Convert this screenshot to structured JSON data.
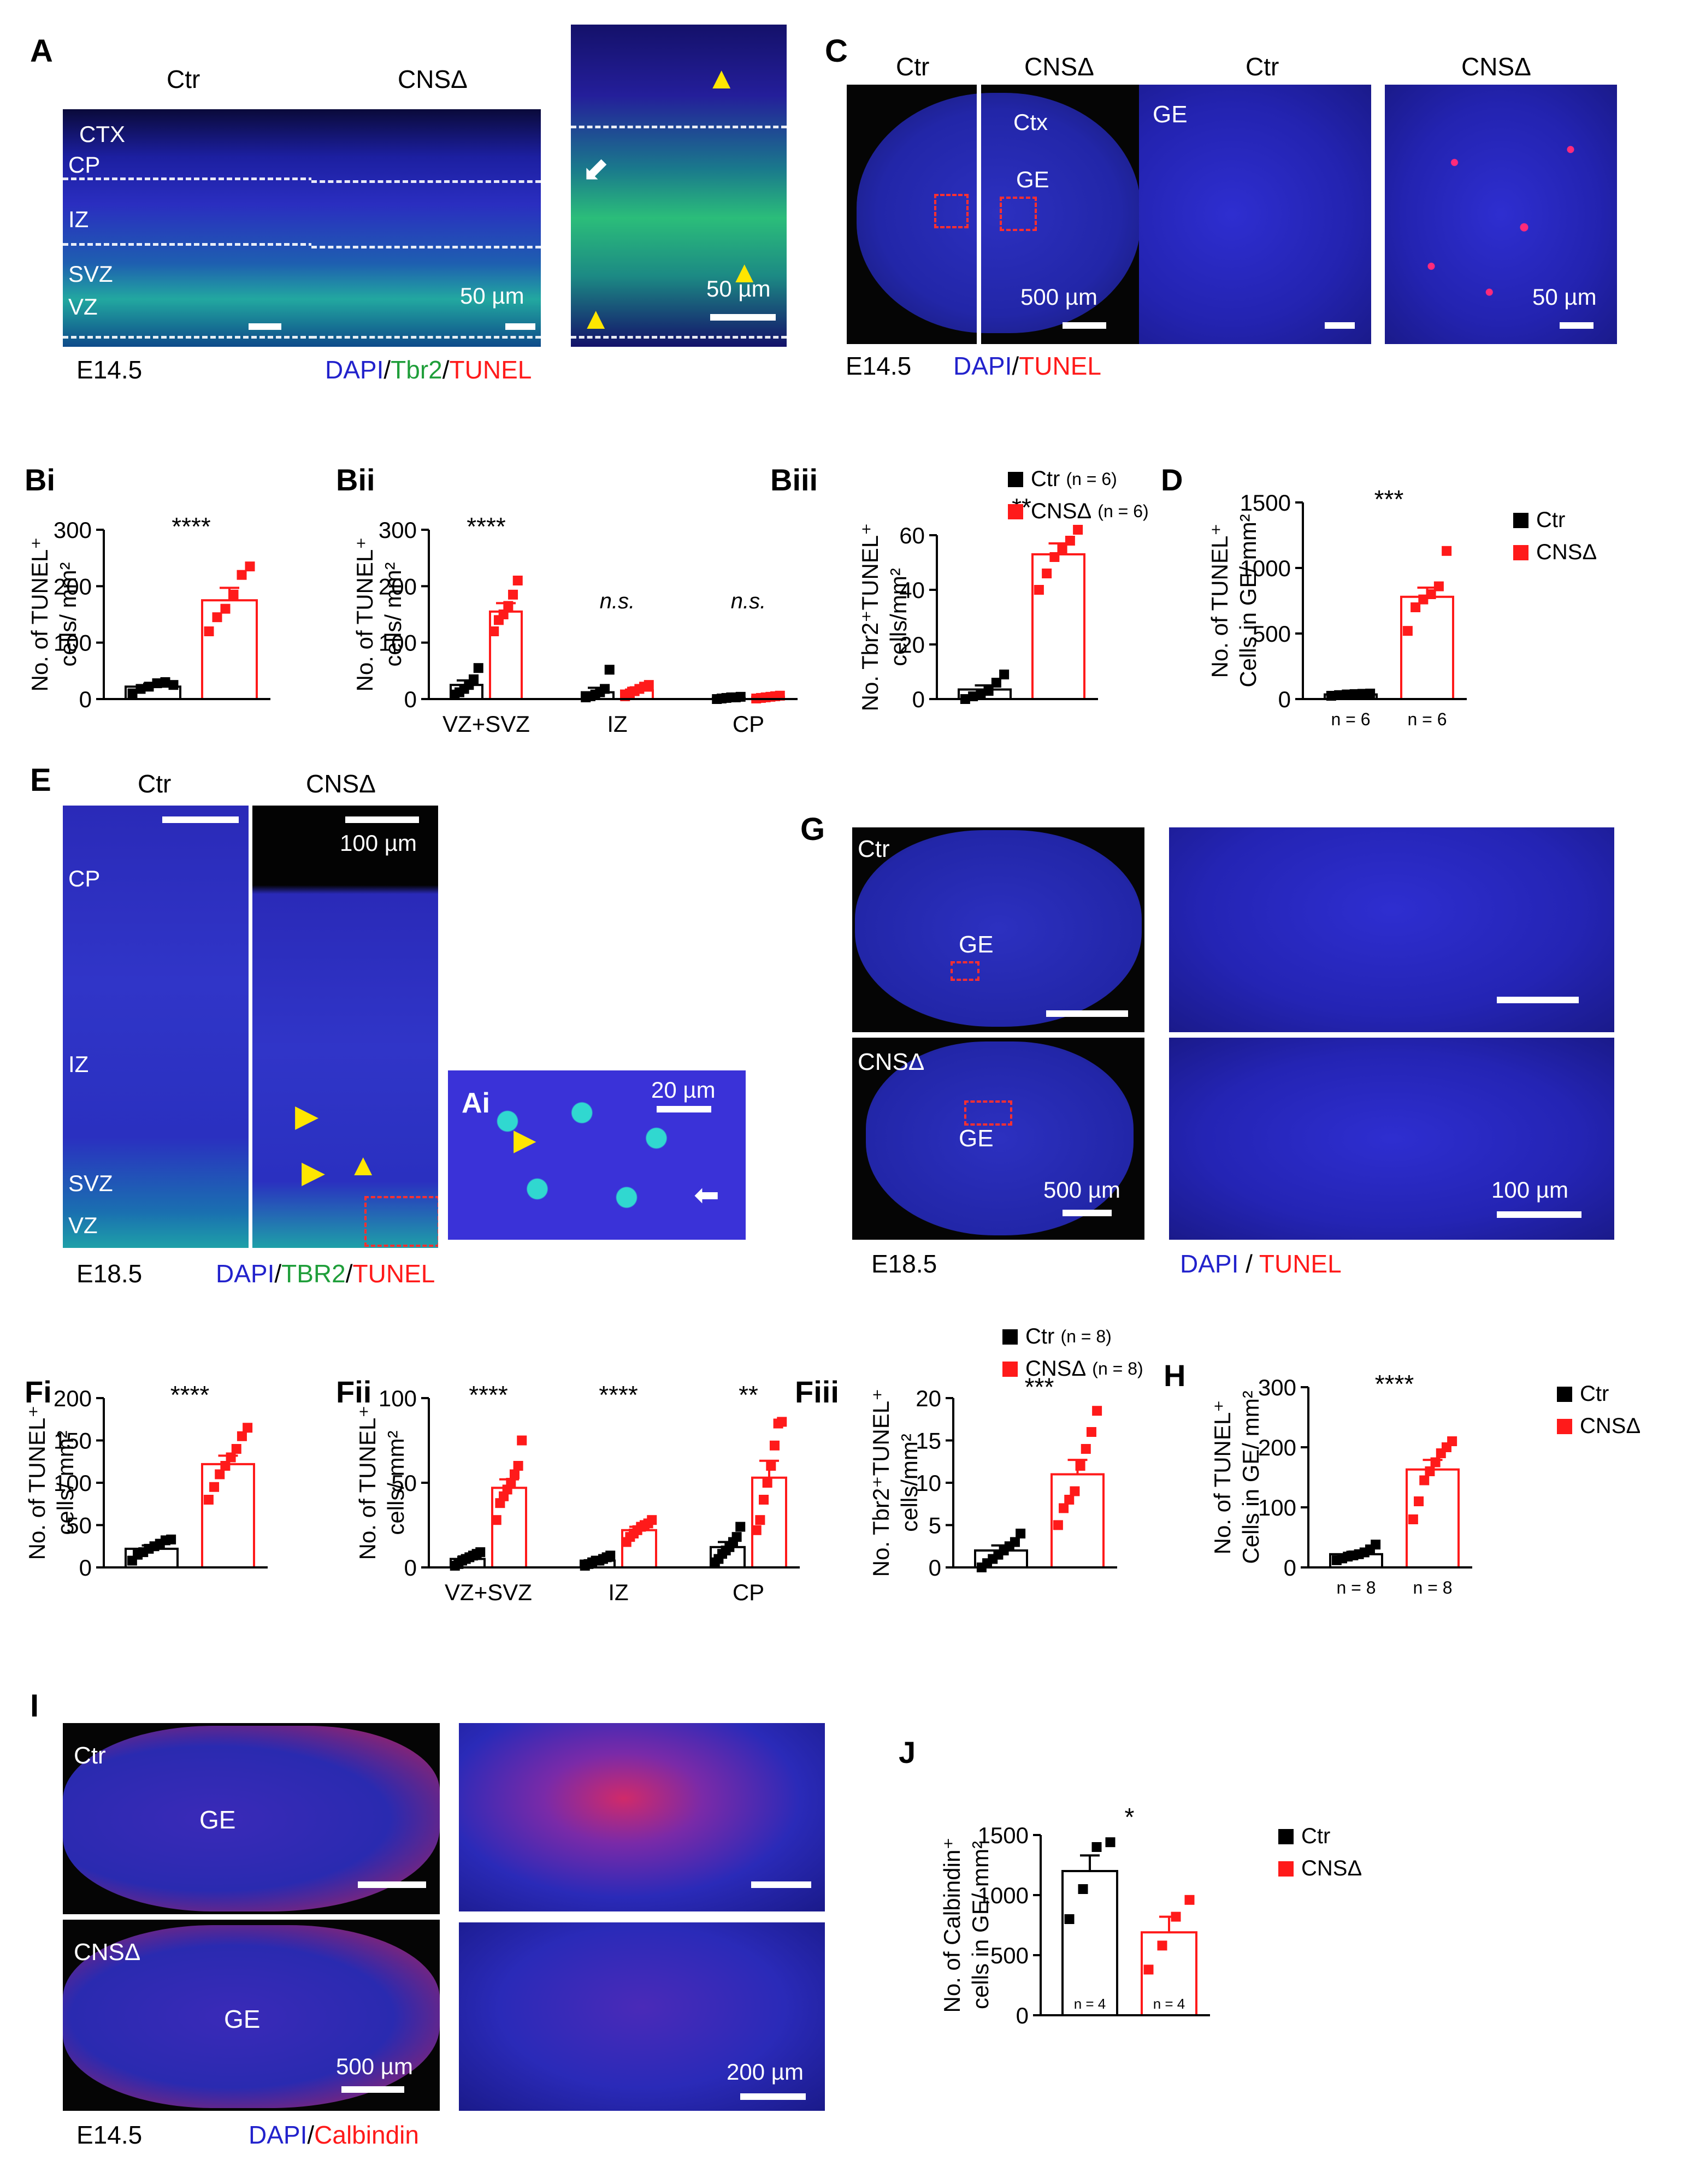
{
  "panels": {
    "A": {
      "label": "A",
      "ctr": "Ctr",
      "cnsd": "CNSΔ",
      "ctx": "CTX",
      "cp": "CP",
      "iz": "IZ",
      "svz": "SVZ",
      "vz": "VZ",
      "scale1": "50 µm",
      "scale2": "50 µm",
      "age": "E14.5",
      "stain": [
        "DAPI",
        "/",
        "Tbr2",
        "/",
        "TUNEL"
      ]
    },
    "C": {
      "label": "C",
      "ctr": "Ctr",
      "cnsd": "CNSΔ",
      "ctr2": "Ctr",
      "cnsd2": "CNSΔ",
      "ctx": "Ctx",
      "ge": "GE",
      "ge2": "GE",
      "scale1": "500 µm",
      "scale2": "50 µm",
      "age": "E14.5",
      "stain": [
        "DAPI",
        "/",
        "TUNEL"
      ]
    },
    "E": {
      "label": "E",
      "ctr": "Ctr",
      "cnsd": "CNSΔ",
      "scale": "100 µm",
      "cp": "CP",
      "iz": "IZ",
      "svz": "SVZ",
      "vz": "VZ",
      "ai": "Ai",
      "scale_ai": "20 µm",
      "age": "E18.5",
      "stain": [
        "DAPI",
        "/",
        "TBR2",
        "/",
        "TUNEL"
      ]
    },
    "G": {
      "label": "G",
      "ctr": "Ctr",
      "cnsd": "CNSΔ",
      "ge1": "GE",
      "ge2": "GE",
      "scale1": "500 µm",
      "scale2": "100 µm",
      "age": "E18.5",
      "stain": [
        "DAPI",
        " / ",
        "TUNEL"
      ]
    },
    "I": {
      "label": "I",
      "ctr": "Ctr",
      "cnsd": "CNSΔ",
      "ge1": "GE",
      "ge2": "GE",
      "scale1": "500 µm",
      "scale2": "200 µm",
      "age": "E14.5",
      "stain": [
        "DAPI",
        "/",
        "Calbindin"
      ]
    }
  },
  "colors": {
    "ctr": "#000000",
    "cnsd": "#ff1a1a",
    "dapi": "#2222cc",
    "green": "#1f9e3a",
    "red": "#ff1a1a"
  },
  "legends": {
    "biii": [
      {
        "label": "Ctr",
        "n": "(n = 6)",
        "color": "#000000"
      },
      {
        "label": "CNSΔ",
        "n": "(n = 6)",
        "color": "#ff1a1a"
      }
    ],
    "d": [
      {
        "label": "Ctr",
        "n": "",
        "color": "#000000"
      },
      {
        "label": "CNSΔ",
        "n": "",
        "color": "#ff1a1a"
      }
    ],
    "fiii": [
      {
        "label": "Ctr",
        "n": "(n = 8)",
        "color": "#000000"
      },
      {
        "label": "CNSΔ",
        "n": "(n = 8)",
        "color": "#ff1a1a"
      }
    ],
    "h": [
      {
        "label": "Ctr",
        "n": "",
        "color": "#000000"
      },
      {
        "label": "CNSΔ",
        "n": "",
        "color": "#ff1a1a"
      }
    ],
    "j": [
      {
        "label": "Ctr",
        "n": "",
        "color": "#000000"
      },
      {
        "label": "CNSΔ",
        "n": "",
        "color": "#ff1a1a"
      }
    ]
  },
  "chart_data": [
    {
      "id": "Bi",
      "label": "Bi",
      "type": "bar",
      "ylabel": [
        "No. of TUNEL⁺",
        "cells/ mm²"
      ],
      "ylim": [
        0,
        300
      ],
      "yticks": [
        0,
        100,
        200,
        300
      ],
      "categories": [
        "Ctr",
        "CNSΔ"
      ],
      "values": [
        22,
        175
      ],
      "errors": [
        5,
        22
      ],
      "points": [
        [
          10,
          18,
          22,
          28,
          30,
          25
        ],
        [
          120,
          145,
          160,
          185,
          220,
          235
        ]
      ],
      "sig": "****",
      "xlabels": [],
      "nlabels": []
    },
    {
      "id": "Bii",
      "label": "Bii",
      "type": "bar",
      "ylabel": [
        "No. of TUNEL⁺",
        "cells/ mm²"
      ],
      "ylim": [
        0,
        300
      ],
      "yticks": [
        0,
        100,
        200,
        300
      ],
      "categories": [
        "VZ+SVZ",
        "IZ",
        "CP"
      ],
      "series": [
        {
          "name": "Ctr",
          "values": [
            25,
            12,
            2
          ],
          "errors": [
            8,
            8,
            1
          ],
          "points": [
            [
              8,
              12,
              18,
              25,
              35,
              55
            ],
            [
              3,
              5,
              8,
              12,
              18,
              52
            ],
            [
              0,
              1,
              2,
              3,
              3,
              4
            ]
          ]
        },
        {
          "name": "CNSΔ",
          "values": [
            155,
            15,
            4
          ],
          "errors": [
            15,
            5,
            2
          ],
          "points": [
            [
              120,
              140,
              150,
              165,
              185,
              210
            ],
            [
              5,
              10,
              14,
              18,
              22,
              25
            ],
            [
              1,
              2,
              3,
              4,
              5,
              6
            ]
          ]
        }
      ],
      "sig": [
        "****",
        "n.s.",
        "n.s."
      ],
      "xlabels": [
        "VZ+SVZ",
        "IZ",
        "CP"
      ],
      "nlabels": []
    },
    {
      "id": "Biii",
      "label": "Biii",
      "type": "bar",
      "ylabel": [
        "No. Tbr2⁺TUNEL⁺",
        "cells/mm²"
      ],
      "ylim": [
        0,
        60
      ],
      "yticks": [
        0,
        20,
        40,
        60
      ],
      "categories": [
        "Ctr",
        "CNSΔ"
      ],
      "values": [
        3.5,
        53
      ],
      "errors": [
        1.5,
        4
      ],
      "points": [
        [
          0,
          1,
          2,
          3,
          6,
          9
        ],
        [
          40,
          46,
          52,
          55,
          58,
          62
        ]
      ],
      "sig": "**",
      "xlabels": [],
      "nlabels": []
    },
    {
      "id": "D",
      "label": "D",
      "type": "bar",
      "ylabel": [
        "No. of  TUNEL⁺",
        "Cells in GE/ mm²"
      ],
      "ylim": [
        0,
        1500
      ],
      "yticks": [
        0,
        500,
        1000,
        1500
      ],
      "categories": [
        "Ctr",
        "CNSΔ"
      ],
      "values": [
        35,
        780
      ],
      "errors": [
        5,
        70
      ],
      "points": [
        [
          25,
          30,
          35,
          38,
          40,
          42
        ],
        [
          520,
          700,
          760,
          800,
          860,
          1130
        ]
      ],
      "sig": "***",
      "xlabels": [],
      "nlabels": [
        "n = 6",
        "n = 6"
      ]
    },
    {
      "id": "Fi",
      "label": "Fi",
      "type": "bar",
      "ylabel": [
        "No. of TUNEL⁺",
        "cells/ mm²"
      ],
      "ylim": [
        0,
        200
      ],
      "yticks": [
        0,
        50,
        100,
        150,
        200
      ],
      "categories": [
        "Ctr",
        "CNSΔ"
      ],
      "values": [
        22,
        122
      ],
      "errors": [
        4,
        10
      ],
      "points": [
        [
          8,
          15,
          18,
          22,
          25,
          28,
          32,
          33
        ],
        [
          80,
          95,
          110,
          120,
          130,
          140,
          155,
          165
        ]
      ],
      "sig": "****",
      "xlabels": [],
      "nlabels": []
    },
    {
      "id": "Fii",
      "label": "Fii",
      "type": "bar",
      "ylabel": [
        "No. of TUNEL⁺",
        "cells/ mm²"
      ],
      "ylim": [
        0,
        100
      ],
      "yticks": [
        0,
        50,
        100
      ],
      "categories": [
        "VZ+SVZ",
        "IZ",
        "CP"
      ],
      "series": [
        {
          "name": "Ctr",
          "values": [
            5,
            4,
            12
          ],
          "errors": [
            1.5,
            1,
            3
          ],
          "points": [
            [
              1,
              2,
              4,
              5,
              6,
              7,
              8,
              9
            ],
            [
              1,
              2,
              3,
              4,
              4,
              5,
              6,
              7
            ],
            [
              3,
              5,
              8,
              10,
              12,
              15,
              18,
              24
            ]
          ]
        },
        {
          "name": "CNSΔ",
          "values": [
            47,
            22,
            53
          ],
          "errors": [
            5,
            2,
            10
          ],
          "points": [
            [
              28,
              38,
              42,
              46,
              50,
              55,
              60,
              75
            ],
            [
              15,
              18,
              20,
              22,
              24,
              25,
              26,
              28
            ],
            [
              22,
              28,
              40,
              50,
              60,
              72,
              85,
              86
            ]
          ]
        }
      ],
      "sig": [
        "****",
        "****",
        "**"
      ],
      "xlabels": [
        "VZ+SVZ",
        "IZ",
        "CP"
      ],
      "nlabels": []
    },
    {
      "id": "Fiii",
      "label": "Fiii",
      "type": "bar",
      "ylabel": [
        "No. Tbr2⁺TUNEL⁺",
        "cells/mm²"
      ],
      "ylim": [
        0,
        20
      ],
      "yticks": [
        0,
        5,
        10,
        15,
        20
      ],
      "categories": [
        "Ctr",
        "CNSΔ"
      ],
      "values": [
        2,
        11
      ],
      "errors": [
        0.6,
        1.7
      ],
      "points": [
        [
          0,
          0.5,
          1,
          1.5,
          2,
          2.5,
          3,
          4
        ],
        [
          5,
          7,
          8,
          9,
          12,
          14,
          16,
          18.5
        ]
      ],
      "sig": "***",
      "xlabels": [],
      "nlabels": []
    },
    {
      "id": "H",
      "label": "H",
      "type": "bar",
      "ylabel": [
        "No. of  TUNEL⁺",
        "Cells in GE/ mm²"
      ],
      "ylim": [
        0,
        300
      ],
      "yticks": [
        0,
        100,
        200,
        300
      ],
      "categories": [
        "Ctr",
        "CNSΔ"
      ],
      "values": [
        22,
        163
      ],
      "errors": [
        4,
        16
      ],
      "points": [
        [
          12,
          15,
          18,
          20,
          22,
          25,
          30,
          38
        ],
        [
          80,
          110,
          145,
          160,
          175,
          190,
          200,
          210
        ]
      ],
      "sig": "****",
      "xlabels": [],
      "nlabels": [
        "n = 8",
        "n = 8"
      ]
    },
    {
      "id": "J",
      "label": "J",
      "type": "bar",
      "ylabel": [
        "No. of  Calbindin⁺",
        "cells in GE/ mm²"
      ],
      "ylim": [
        0,
        1500
      ],
      "yticks": [
        0,
        500,
        1000,
        1500
      ],
      "categories": [
        "Ctr",
        "CNSΔ"
      ],
      "values": [
        1200,
        690
      ],
      "errors": [
        130,
        130
      ],
      "points": [
        [
          800,
          1050,
          1400,
          1440
        ],
        [
          380,
          580,
          820,
          960
        ]
      ],
      "sig": "*",
      "xlabels": [],
      "nlabels": [
        "n = 4",
        "n = 4"
      ]
    }
  ]
}
